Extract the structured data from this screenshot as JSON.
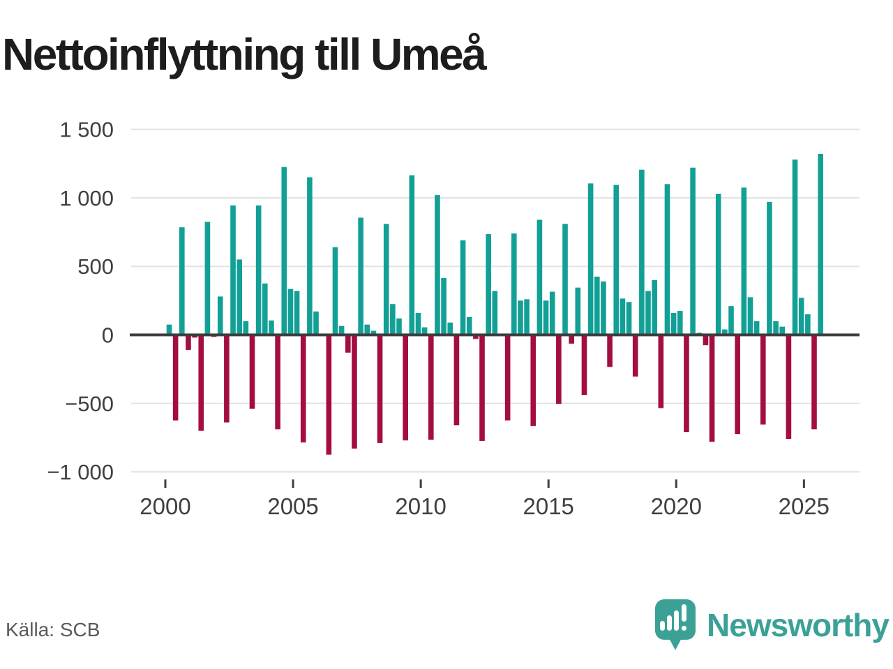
{
  "title": "Nettoinflyttning till Umeå",
  "source": "Källa: SCB",
  "brand": {
    "name": "Newsworthy",
    "color": "#3ba197",
    "icon": "bar-chart-speech-bubble"
  },
  "chart_data": {
    "type": "bar",
    "title": "Nettoinflyttning till Umeå",
    "resolution": "quarterly",
    "xlabel": "",
    "ylabel": "",
    "ylim": [
      -1000,
      1500
    ],
    "grid": true,
    "x_ticks": [
      2000,
      2005,
      2010,
      2015,
      2020,
      2025
    ],
    "y_ticks": [
      {
        "value": 1500,
        "label": "1 500"
      },
      {
        "value": 1000,
        "label": "1 000"
      },
      {
        "value": 500,
        "label": "500"
      },
      {
        "value": 0,
        "label": "0"
      },
      {
        "value": -500,
        "label": "−500"
      },
      {
        "value": -1000,
        "label": "−1 000"
      }
    ],
    "colors": {
      "positive": "#12a096",
      "negative": "#a40d42"
    },
    "series": [
      {
        "year": 2000,
        "values": [
          75,
          -625,
          785,
          -110
        ]
      },
      {
        "year": 2001,
        "values": [
          -20,
          -700,
          825,
          -15
        ]
      },
      {
        "year": 2002,
        "values": [
          280,
          -640,
          945,
          550
        ]
      },
      {
        "year": 2003,
        "values": [
          100,
          -540,
          945,
          375
        ]
      },
      {
        "year": 2004,
        "values": [
          105,
          -690,
          1225,
          335
        ]
      },
      {
        "year": 2005,
        "values": [
          320,
          -785,
          1150,
          170
        ]
      },
      {
        "year": 2006,
        "values": [
          0,
          -875,
          640,
          65
        ]
      },
      {
        "year": 2007,
        "values": [
          -130,
          -830,
          855,
          75
        ]
      },
      {
        "year": 2008,
        "values": [
          30,
          -790,
          810,
          225
        ]
      },
      {
        "year": 2009,
        "values": [
          120,
          -770,
          1165,
          160
        ]
      },
      {
        "year": 2010,
        "values": [
          55,
          -765,
          1020,
          415
        ]
      },
      {
        "year": 2011,
        "values": [
          90,
          -660,
          690,
          130
        ]
      },
      {
        "year": 2012,
        "values": [
          -30,
          -775,
          735,
          320
        ]
      },
      {
        "year": 2013,
        "values": [
          0,
          -625,
          740,
          250
        ]
      },
      {
        "year": 2014,
        "values": [
          260,
          -665,
          840,
          250
        ]
      },
      {
        "year": 2015,
        "values": [
          315,
          -505,
          810,
          -65
        ]
      },
      {
        "year": 2016,
        "values": [
          345,
          -440,
          1105,
          425
        ]
      },
      {
        "year": 2017,
        "values": [
          390,
          -235,
          1095,
          265
        ]
      },
      {
        "year": 2018,
        "values": [
          240,
          -305,
          1205,
          320
        ]
      },
      {
        "year": 2019,
        "values": [
          400,
          -535,
          1100,
          160
        ]
      },
      {
        "year": 2020,
        "values": [
          175,
          -710,
          1220,
          15
        ]
      },
      {
        "year": 2021,
        "values": [
          -75,
          -780,
          1030,
          40
        ]
      },
      {
        "year": 2022,
        "values": [
          210,
          -725,
          1075,
          275
        ]
      },
      {
        "year": 2023,
        "values": [
          100,
          -655,
          970,
          100
        ]
      },
      {
        "year": 2024,
        "values": [
          60,
          -760,
          1280,
          270
        ]
      },
      {
        "year": 2025,
        "values": [
          150,
          -690,
          1320
        ]
      }
    ]
  }
}
